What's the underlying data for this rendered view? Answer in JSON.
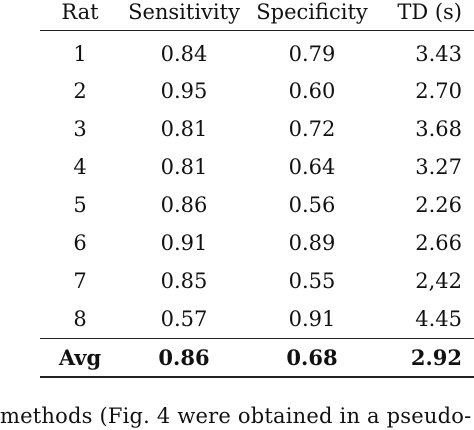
{
  "table": {
    "headers": [
      "Rat",
      "Sensitivity",
      "Specificity",
      "TD (s)"
    ],
    "rows": [
      [
        "1",
        "0.84",
        "0.79",
        "3.43"
      ],
      [
        "2",
        "0.95",
        "0.60",
        "2.70"
      ],
      [
        "3",
        "0.81",
        "0.72",
        "3.68"
      ],
      [
        "4",
        "0.81",
        "0.64",
        "3.27"
      ],
      [
        "5",
        "0.86",
        "0.56",
        "2.26"
      ],
      [
        "6",
        "0.91",
        "0.89",
        "2.66"
      ],
      [
        "7",
        "0.85",
        "0.55",
        "2,42"
      ],
      [
        "8",
        "0.57",
        "0.91",
        "4.45"
      ]
    ],
    "avg": [
      "Avg",
      "0.86",
      "0.68",
      "2.92"
    ]
  },
  "caption_text": "methods (Fig. 4 were obtained in a pseudo-"
}
